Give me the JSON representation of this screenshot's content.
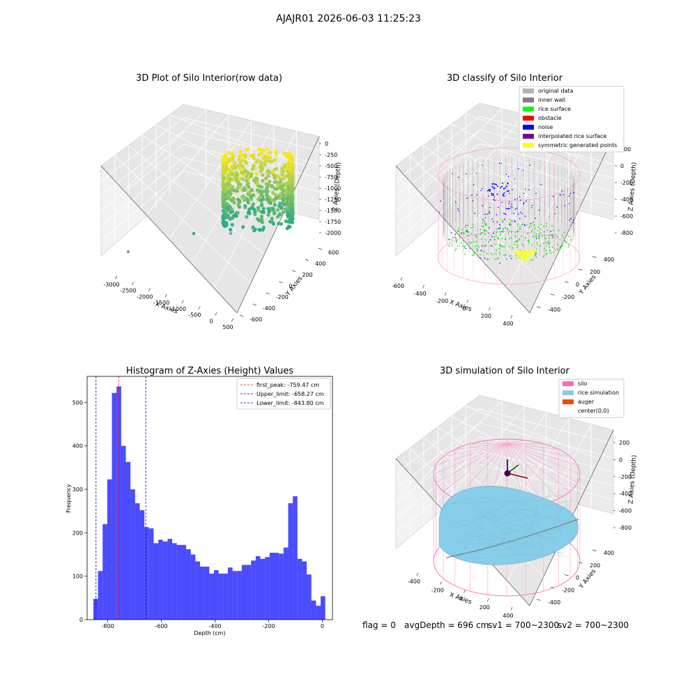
{
  "suptitle": "AJAJR01 2026-06-03 11:25:23",
  "footer": {
    "flag": "flag = 0",
    "avg": "avgDepth = 696 cm",
    "sv1": "sv1 = 700~2300",
    "sv2": "sv2 = 700~2300"
  },
  "chart_data": [
    {
      "type": "scatter3d",
      "title": "3D Plot of Silo Interior(row data)",
      "xlabel": "X Axies",
      "ylabel": "Y Axies",
      "zlabel": "Z Axies (Depth)",
      "x_ticks": [
        "-3000",
        "-2500",
        "-2000",
        "-1500",
        "-1000",
        "-500",
        "0",
        "500"
      ],
      "y_ticks": [
        "-600",
        "-400",
        "-200",
        "0",
        "200",
        "400",
        "600"
      ],
      "z_ticks": [
        "0",
        "-250",
        "-500",
        "-750",
        "-1000",
        "-1250",
        "-1500",
        "-1750",
        "-2000"
      ],
      "colormap": [
        "#26a98a",
        "#fde725"
      ]
    },
    {
      "type": "scatter3d",
      "title": "3D classify of Silo Interior",
      "xlabel": "X Axies",
      "ylabel": "Y Axies",
      "zlabel": "Z Axies (Depth)",
      "x_ticks": [
        "-600",
        "-400",
        "-200",
        "0",
        "200",
        "400"
      ],
      "y_ticks": [
        "-400",
        "-200",
        "0",
        "200",
        "400"
      ],
      "z_ticks": [
        "200",
        "0",
        "-200",
        "-400",
        "-600",
        "-800"
      ],
      "legend_position": "top-right",
      "legend": [
        {
          "label": "original data",
          "color": "#b3b3b3"
        },
        {
          "label": "inner wall",
          "color": "#808080"
        },
        {
          "label": "rice surface",
          "color": "#00ff00"
        },
        {
          "label": "obstacle",
          "color": "#ff0000"
        },
        {
          "label": "noise",
          "color": "#0000ff"
        },
        {
          "label": "interpolated rice surface",
          "color": "#800080"
        },
        {
          "label": "symmetric generated points",
          "color": "#ffff00"
        }
      ]
    },
    {
      "type": "bar",
      "title": "Histogram of Z-Axies (Height) Values",
      "xlabel": "Depth (cm)",
      "ylabel": "Frequency",
      "xlim": [
        -877,
        38
      ],
      "ylim": [
        0,
        560
      ],
      "x_ticks": [
        -800,
        -600,
        -400,
        -200,
        0
      ],
      "y_ticks": [
        0,
        100,
        200,
        300,
        400,
        500
      ],
      "bar_color": "#0000ff",
      "bin_start": -853.8,
      "bin_width": 17.3,
      "values": [
        48,
        112,
        220,
        323,
        522,
        537,
        400,
        363,
        300,
        268,
        252,
        213,
        210,
        176,
        184,
        180,
        186,
        176,
        172,
        172,
        162,
        150,
        134,
        122,
        122,
        106,
        114,
        106,
        106,
        120,
        112,
        112,
        126,
        126,
        136,
        146,
        140,
        144,
        154,
        154,
        152,
        166,
        268,
        284,
        140,
        134,
        104,
        44,
        32,
        54
      ],
      "legend_position": "top-right",
      "vlines": [
        {
          "label": "first_peak: -759.47 cm",
          "x": -759.47,
          "color": "#ff0000"
        },
        {
          "label": "Upper_limit: -658.27 cm",
          "x": -658.27,
          "color": "#0000b0"
        },
        {
          "label": "Lower_limit: -843.80 cm",
          "x": -843.8,
          "color": "#0000b0"
        }
      ]
    },
    {
      "type": "surface3d",
      "title": "3D simulation of Silo Interior",
      "xlabel": "X Axies",
      "ylabel": "Y Axies",
      "zlabel": "Z Axies (Depth)",
      "x_ticks": [
        "-400",
        "-200",
        "0",
        "200",
        "400"
      ],
      "y_ticks": [
        "-400",
        "-200",
        "0",
        "200",
        "400"
      ],
      "z_ticks": [
        "200",
        "0",
        "-200",
        "-400",
        "-600",
        "-800"
      ],
      "legend_position": "top-right",
      "legend": [
        {
          "label": "silo",
          "color": "#ff69b4"
        },
        {
          "label": "rice simulation",
          "color": "#87ceeb"
        },
        {
          "label": "auger",
          "color": "#ff4500"
        },
        {
          "label": "center(0,0)",
          "color": "#ffffff"
        }
      ]
    }
  ]
}
